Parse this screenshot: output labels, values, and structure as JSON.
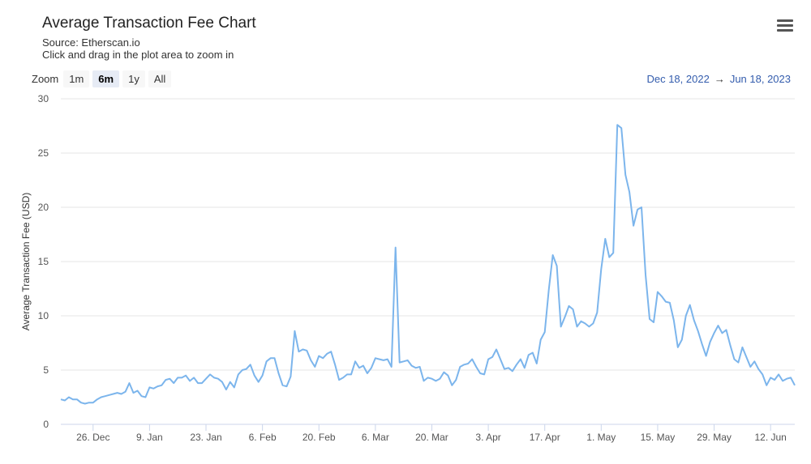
{
  "header": {
    "title": "Average Transaction Fee Chart",
    "source": "Source: Etherscan.io",
    "hint": "Click and drag in the plot area to zoom in"
  },
  "zoom": {
    "label": "Zoom",
    "buttons": [
      {
        "label": "1m",
        "active": false
      },
      {
        "label": "6m",
        "active": true
      },
      {
        "label": "1y",
        "active": false
      },
      {
        "label": "All",
        "active": false
      }
    ]
  },
  "range": {
    "from": "Dec 18, 2022",
    "arrow": "→",
    "to": "Jun 18, 2023"
  },
  "menu": {
    "icon": "hamburger-menu-icon"
  },
  "chart_data": {
    "type": "line",
    "title": "Average Transaction Fee Chart",
    "ylabel": "Average Transaction Fee (USD)",
    "xlabel": "",
    "ylim": [
      0,
      30
    ],
    "yticks": [
      0,
      5,
      10,
      15,
      20,
      25,
      30
    ],
    "xlim": [
      "2022-12-18",
      "2023-06-18"
    ],
    "xticks": [
      {
        "date": "2022-12-26",
        "label": "26. Dec"
      },
      {
        "date": "2023-01-09",
        "label": "9. Jan"
      },
      {
        "date": "2023-01-23",
        "label": "23. Jan"
      },
      {
        "date": "2023-02-06",
        "label": "6. Feb"
      },
      {
        "date": "2023-02-20",
        "label": "20. Feb"
      },
      {
        "date": "2023-03-06",
        "label": "6. Mar"
      },
      {
        "date": "2023-03-20",
        "label": "20. Mar"
      },
      {
        "date": "2023-04-03",
        "label": "3. Apr"
      },
      {
        "date": "2023-04-17",
        "label": "17. Apr"
      },
      {
        "date": "2023-05-01",
        "label": "1. May"
      },
      {
        "date": "2023-05-15",
        "label": "15. May"
      },
      {
        "date": "2023-05-29",
        "label": "29. May"
      },
      {
        "date": "2023-06-12",
        "label": "12. Jun"
      }
    ],
    "grid": true,
    "color": "#7cb5ec",
    "series": [
      {
        "x": [
          "2022-12-18",
          "2022-12-19",
          "2022-12-20",
          "2022-12-21",
          "2022-12-22",
          "2022-12-23",
          "2022-12-24",
          "2022-12-25",
          "2022-12-26",
          "2022-12-27",
          "2022-12-28",
          "2022-12-29",
          "2022-12-30",
          "2022-12-31",
          "2023-01-01",
          "2023-01-02",
          "2023-01-03",
          "2023-01-04",
          "2023-01-05",
          "2023-01-06",
          "2023-01-07",
          "2023-01-08",
          "2023-01-09",
          "2023-01-10",
          "2023-01-11",
          "2023-01-12",
          "2023-01-13",
          "2023-01-14",
          "2023-01-15",
          "2023-01-16",
          "2023-01-17",
          "2023-01-18",
          "2023-01-19",
          "2023-01-20",
          "2023-01-21",
          "2023-01-22",
          "2023-01-23",
          "2023-01-24",
          "2023-01-25",
          "2023-01-26",
          "2023-01-27",
          "2023-01-28",
          "2023-01-29",
          "2023-01-30",
          "2023-01-31",
          "2023-02-01",
          "2023-02-02",
          "2023-02-03",
          "2023-02-04",
          "2023-02-05",
          "2023-02-06",
          "2023-02-07",
          "2023-02-08",
          "2023-02-09",
          "2023-02-10",
          "2023-02-11",
          "2023-02-12",
          "2023-02-13",
          "2023-02-14",
          "2023-02-15",
          "2023-02-16",
          "2023-02-17",
          "2023-02-18",
          "2023-02-19",
          "2023-02-20",
          "2023-02-21",
          "2023-02-22",
          "2023-02-23",
          "2023-02-24",
          "2023-02-25",
          "2023-02-26",
          "2023-02-27",
          "2023-02-28",
          "2023-03-01",
          "2023-03-02",
          "2023-03-03",
          "2023-03-04",
          "2023-03-05",
          "2023-03-06",
          "2023-03-07",
          "2023-03-08",
          "2023-03-09",
          "2023-03-10",
          "2023-03-11",
          "2023-03-12",
          "2023-03-13",
          "2023-03-14",
          "2023-03-15",
          "2023-03-16",
          "2023-03-17",
          "2023-03-18",
          "2023-03-19",
          "2023-03-20",
          "2023-03-21",
          "2023-03-22",
          "2023-03-23",
          "2023-03-24",
          "2023-03-25",
          "2023-03-26",
          "2023-03-27",
          "2023-03-28",
          "2023-03-29",
          "2023-03-30",
          "2023-03-31",
          "2023-04-01",
          "2023-04-02",
          "2023-04-03",
          "2023-04-04",
          "2023-04-05",
          "2023-04-06",
          "2023-04-07",
          "2023-04-08",
          "2023-04-09",
          "2023-04-10",
          "2023-04-11",
          "2023-04-12",
          "2023-04-13",
          "2023-04-14",
          "2023-04-15",
          "2023-04-16",
          "2023-04-17",
          "2023-04-18",
          "2023-04-19",
          "2023-04-20",
          "2023-04-21",
          "2023-04-22",
          "2023-04-23",
          "2023-04-24",
          "2023-04-25",
          "2023-04-26",
          "2023-04-27",
          "2023-04-28",
          "2023-04-29",
          "2023-04-30",
          "2023-05-01",
          "2023-05-02",
          "2023-05-03",
          "2023-05-04",
          "2023-05-05",
          "2023-05-06",
          "2023-05-07",
          "2023-05-08",
          "2023-05-09",
          "2023-05-10",
          "2023-05-11",
          "2023-05-12",
          "2023-05-13",
          "2023-05-14",
          "2023-05-15",
          "2023-05-16",
          "2023-05-17",
          "2023-05-18",
          "2023-05-19",
          "2023-05-20",
          "2023-05-21",
          "2023-05-22",
          "2023-05-23",
          "2023-05-24",
          "2023-05-25",
          "2023-05-26",
          "2023-05-27",
          "2023-05-28",
          "2023-05-29",
          "2023-05-30",
          "2023-05-31",
          "2023-06-01",
          "2023-06-02",
          "2023-06-03",
          "2023-06-04",
          "2023-06-05",
          "2023-06-06",
          "2023-06-07",
          "2023-06-08",
          "2023-06-09",
          "2023-06-10",
          "2023-06-11",
          "2023-06-12",
          "2023-06-13",
          "2023-06-14",
          "2023-06-15",
          "2023-06-16",
          "2023-06-17",
          "2023-06-18"
        ],
        "values": [
          2.3,
          2.2,
          2.5,
          2.3,
          2.3,
          2.0,
          1.9,
          2.0,
          2.0,
          2.3,
          2.5,
          2.6,
          2.7,
          2.8,
          2.9,
          2.8,
          3.0,
          3.8,
          2.9,
          3.1,
          2.6,
          2.5,
          3.4,
          3.3,
          3.5,
          3.6,
          4.1,
          4.2,
          3.8,
          4.3,
          4.3,
          4.5,
          4.0,
          4.3,
          3.8,
          3.8,
          4.2,
          4.6,
          4.3,
          4.2,
          3.9,
          3.2,
          3.9,
          3.4,
          4.6,
          5.0,
          5.1,
          5.5,
          4.5,
          3.9,
          4.5,
          5.8,
          6.1,
          6.1,
          4.7,
          3.6,
          3.5,
          4.4,
          8.6,
          6.7,
          6.9,
          6.8,
          5.9,
          5.3,
          6.3,
          6.1,
          6.5,
          6.7,
          5.5,
          4.1,
          4.3,
          4.6,
          4.6,
          5.8,
          5.2,
          5.4,
          4.7,
          5.2,
          6.1,
          6.0,
          5.9,
          6.0,
          5.3,
          16.3,
          5.7,
          5.8,
          5.9,
          5.4,
          5.2,
          5.3,
          4.0,
          4.3,
          4.2,
          4.0,
          4.2,
          4.8,
          4.5,
          3.6,
          4.1,
          5.3,
          5.5,
          5.6,
          6.0,
          5.3,
          4.7,
          4.6,
          6.0,
          6.2,
          6.9,
          6.0,
          5.1,
          5.2,
          4.9,
          5.5,
          6.0,
          5.2,
          6.4,
          6.6,
          5.6,
          7.8,
          8.5,
          12.4,
          15.6,
          14.6,
          9.0,
          9.9,
          10.9,
          10.6,
          9.0,
          9.5,
          9.3,
          9.0,
          9.3,
          10.3,
          14.3,
          17.1,
          15.4,
          15.8,
          27.6,
          27.3,
          23.0,
          21.4,
          18.3,
          19.8,
          20.0,
          13.8,
          9.7,
          9.4,
          12.2,
          11.8,
          11.3,
          11.2,
          9.6,
          7.1,
          7.8,
          10.0,
          11.0,
          9.6,
          8.6,
          7.4,
          6.3,
          7.6,
          8.4,
          9.1,
          8.4,
          8.7,
          7.3,
          6.0,
          5.7,
          7.1,
          6.2,
          5.3,
          5.8,
          5.1,
          4.6,
          3.6,
          4.3,
          4.1,
          4.6,
          4.0,
          4.2,
          4.3,
          3.6
        ]
      }
    ]
  }
}
